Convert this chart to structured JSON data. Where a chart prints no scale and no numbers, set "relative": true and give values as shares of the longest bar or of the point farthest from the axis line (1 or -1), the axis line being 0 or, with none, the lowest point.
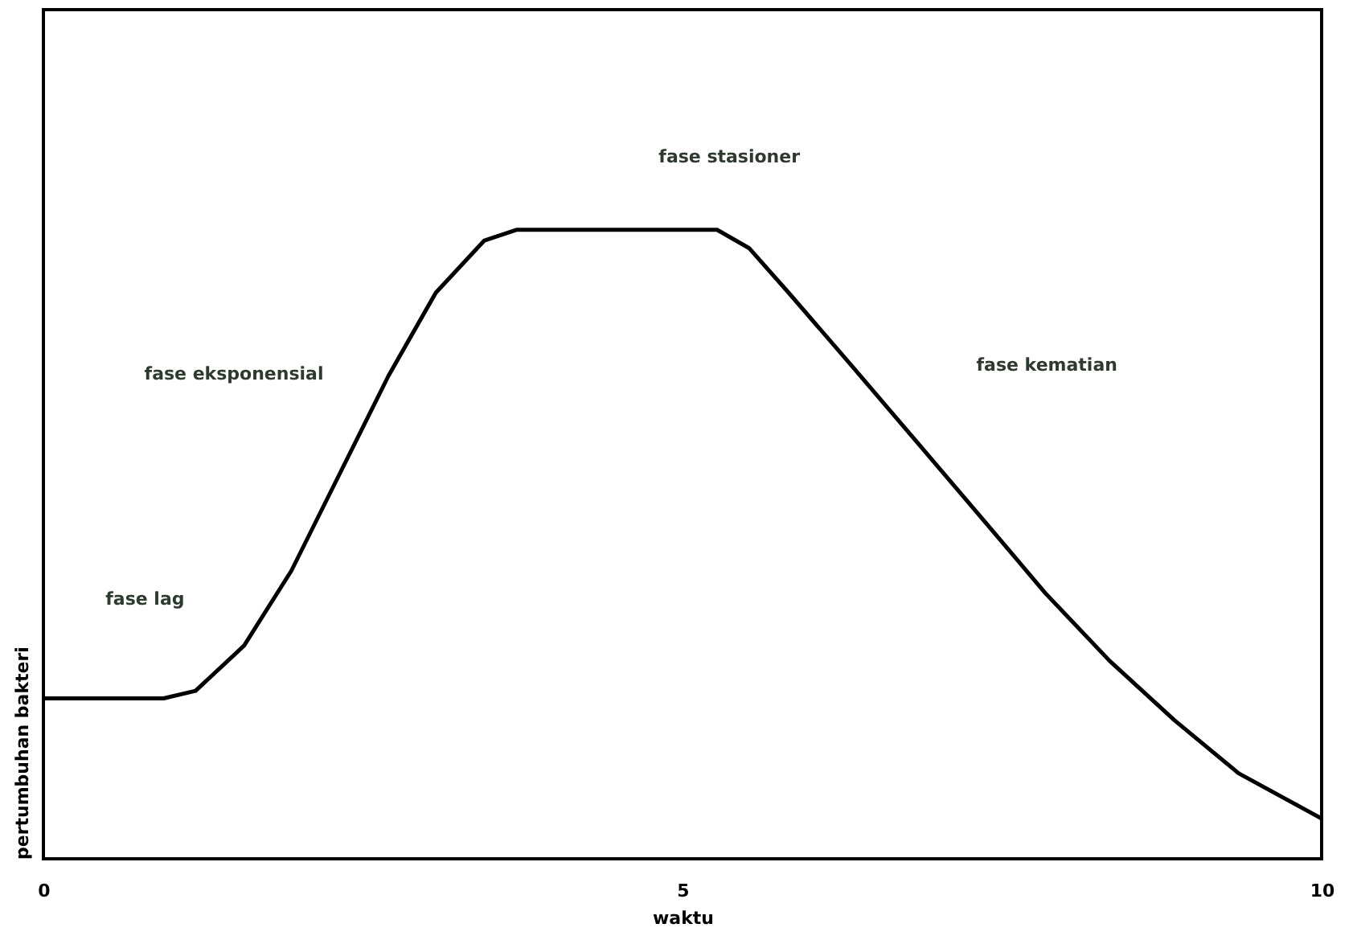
{
  "chart_data": {
    "type": "line",
    "relative": true,
    "xlabel": "waktu",
    "ylabel": "pertumbuhan bakteri",
    "x": [
      0,
      0.94,
      1.19,
      1.57,
      1.94,
      2.32,
      2.7,
      3.07,
      3.45,
      3.7,
      5.27,
      5.52,
      5.83,
      6.34,
      6.84,
      7.34,
      7.84,
      8.34,
      8.85,
      9.35,
      10
    ],
    "series": [
      {
        "color": "#000000",
        "values": [
          0.255,
          0.255,
          0.267,
          0.339,
          0.458,
          0.613,
          0.768,
          0.9,
          0.983,
          1,
          1,
          0.971,
          0.9,
          0.78,
          0.661,
          0.542,
          0.422,
          0.315,
          0.22,
          0.136,
          0.064
        ]
      }
    ],
    "xlim": [
      0,
      10
    ],
    "xticks": [
      0,
      5,
      10
    ],
    "grid": false,
    "marker": "none",
    "line_style": "solid",
    "annotations": [
      "fase lag",
      "fase eksponensial",
      "fase stasioner",
      "fase kematian"
    ]
  }
}
